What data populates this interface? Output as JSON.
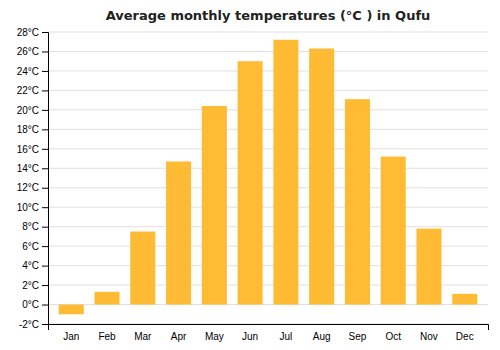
{
  "chart_data": {
    "type": "bar",
    "title": "Average monthly temperatures (°C ) in Qufu",
    "categories": [
      "Jan",
      "Feb",
      "Mar",
      "Apr",
      "May",
      "Jun",
      "Jul",
      "Aug",
      "Sep",
      "Oct",
      "Nov",
      "Dec"
    ],
    "values": [
      -1.0,
      1.3,
      7.5,
      14.7,
      20.4,
      25.0,
      27.2,
      26.3,
      21.1,
      15.2,
      7.8,
      1.1
    ],
    "color": "#FFBB33",
    "ylim": [
      -2,
      28
    ],
    "yticks": [
      {
        "value": -2,
        "label": "-2°C"
      },
      {
        "value": 0,
        "label": "0°C"
      },
      {
        "value": 2,
        "label": "2°C"
      },
      {
        "value": 4,
        "label": "4°C"
      },
      {
        "value": 6,
        "label": "6°C"
      },
      {
        "value": 8,
        "label": "8°C"
      },
      {
        "value": 10,
        "label": "10°C"
      },
      {
        "value": 12,
        "label": "12°C"
      },
      {
        "value": 14,
        "label": "14°C"
      },
      {
        "value": 16,
        "label": "16°C"
      },
      {
        "value": 18,
        "label": "18°C"
      },
      {
        "value": 20,
        "label": "20°C"
      },
      {
        "value": 22,
        "label": "22°C"
      },
      {
        "value": 24,
        "label": "24°C"
      },
      {
        "value": 26,
        "label": "26°C"
      },
      {
        "value": 28,
        "label": "28°C"
      }
    ],
    "grid": true
  }
}
